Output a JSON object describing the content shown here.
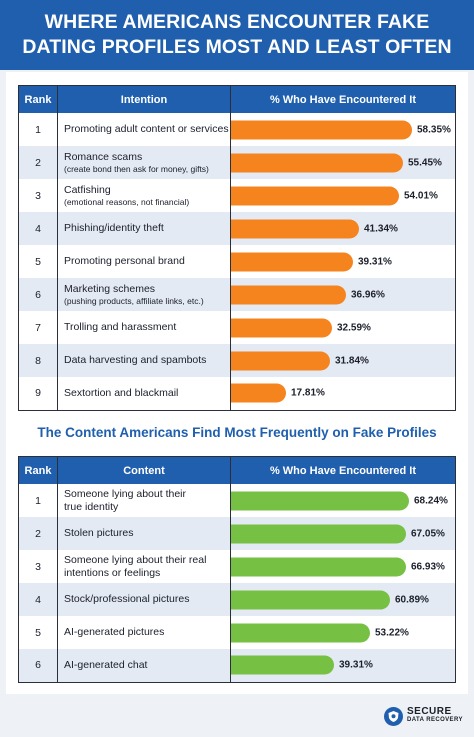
{
  "header": {
    "title_line1": "WHERE AMERICANS ENCOUNTER FAKE",
    "title_line2": "DATING PROFILES MOST AND LEAST OFTEN"
  },
  "colors": {
    "header_bg": "#1f5fae",
    "orange_bar": "#f5841f",
    "green_bar": "#76c043",
    "stripe": "#e4eaf3"
  },
  "chart_data": [
    {
      "type": "bar",
      "orientation": "horizontal",
      "columns": [
        "Rank",
        "Intention",
        "% Who Have Encountered It"
      ],
      "rows": [
        {
          "rank": "1",
          "label": "Promoting adult content or services",
          "sub": "",
          "value": 58.35,
          "value_label": "58.35%"
        },
        {
          "rank": "2",
          "label": "Romance scams",
          "sub": "(create bond then ask for money, gifts)",
          "value": 55.45,
          "value_label": "55.45%"
        },
        {
          "rank": "3",
          "label": "Catfishing",
          "sub": "(emotional reasons, not financial)",
          "value": 54.01,
          "value_label": "54.01%"
        },
        {
          "rank": "4",
          "label": "Phishing/identity theft",
          "sub": "",
          "value": 41.34,
          "value_label": "41.34%"
        },
        {
          "rank": "5",
          "label": "Promoting personal brand",
          "sub": "",
          "value": 39.31,
          "value_label": "39.31%"
        },
        {
          "rank": "6",
          "label": "Marketing schemes",
          "sub": "(pushing products, affiliate links, etc.)",
          "value": 36.96,
          "value_label": "36.96%"
        },
        {
          "rank": "7",
          "label": "Trolling and harassment",
          "sub": "",
          "value": 32.59,
          "value_label": "32.59%"
        },
        {
          "rank": "8",
          "label": "Data harvesting and spambots",
          "sub": "",
          "value": 31.84,
          "value_label": "31.84%"
        },
        {
          "rank": "9",
          "label": "Sextortion and blackmail",
          "sub": "",
          "value": 17.81,
          "value_label": "17.81%"
        }
      ],
      "bar_color": "#f5841f"
    },
    {
      "type": "bar",
      "orientation": "horizontal",
      "title": "The Content Americans Find Most Frequently on Fake Profiles",
      "columns": [
        "Rank",
        "Content",
        "% Who Have Encountered It"
      ],
      "rows": [
        {
          "rank": "1",
          "label": "Someone lying about their",
          "sub": "true identity",
          "value": 68.24,
          "value_label": "68.24%"
        },
        {
          "rank": "2",
          "label": "Stolen pictures",
          "sub": "",
          "value": 67.05,
          "value_label": "67.05%"
        },
        {
          "rank": "3",
          "label": "Someone lying about their real",
          "sub": "intentions or feelings",
          "value": 66.93,
          "value_label": "66.93%"
        },
        {
          "rank": "4",
          "label": "Stock/professional pictures",
          "sub": "",
          "value": 60.89,
          "value_label": "60.89%"
        },
        {
          "rank": "5",
          "label": "AI-generated pictures",
          "sub": "",
          "value": 53.22,
          "value_label": "53.22%"
        },
        {
          "rank": "6",
          "label": "AI-generated chat",
          "sub": "",
          "value": 39.31,
          "value_label": "39.31%"
        }
      ],
      "bar_color": "#76c043"
    }
  ],
  "logo": {
    "line1": "SECURE",
    "line2": "DATA RECOVERY",
    "icon": "shield-disk-icon"
  }
}
